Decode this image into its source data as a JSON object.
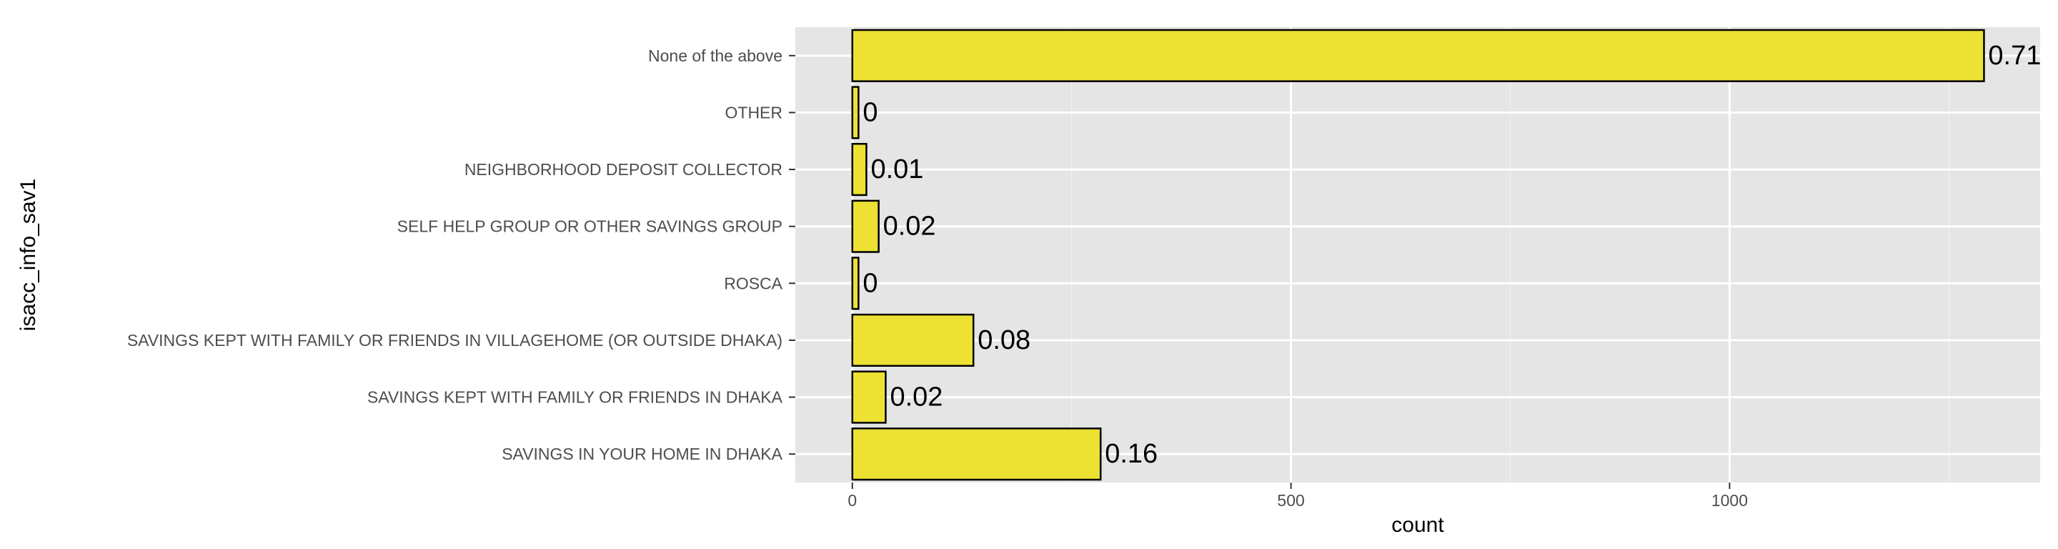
{
  "chart_data": {
    "type": "bar",
    "orientation": "horizontal",
    "title": "",
    "xlabel": "count",
    "ylabel": "isacc_info_sav1",
    "categories": [
      "None of the above",
      "OTHER",
      "NEIGHBORHOOD DEPOSIT COLLECTOR ",
      "SELF HELP GROUP OR OTHER SAVINGS GROUP",
      "ROSCA",
      "SAVINGS KEPT WITH FAMILY OR FRIENDS IN VILLAGEHOME (OR OUTSIDE DHAKA)",
      "SAVINGS KEPT WITH FAMILY OR FRIENDS IN DHAKA",
      "SAVINGS IN YOUR HOME IN DHAKA"
    ],
    "values": [
      1290,
      7,
      16,
      30,
      7,
      138,
      38,
      283
    ],
    "data_labels": [
      "0.71",
      "0",
      "0.01",
      "0.02",
      "0",
      "0.08",
      "0.02",
      "0.16"
    ],
    "xlim": [
      -65,
      1354
    ],
    "xticks": [
      0,
      500,
      1000
    ],
    "xtick_labels": [
      "0",
      "500",
      "1000"
    ],
    "grid": true,
    "legend": "none",
    "colors": {
      "bar_fill": "#ede134",
      "bar_stroke": "#000000",
      "panel_bg": "#e5e5e5",
      "grid_major": "#ffffff",
      "grid_minor": "#f0f0f0"
    }
  }
}
